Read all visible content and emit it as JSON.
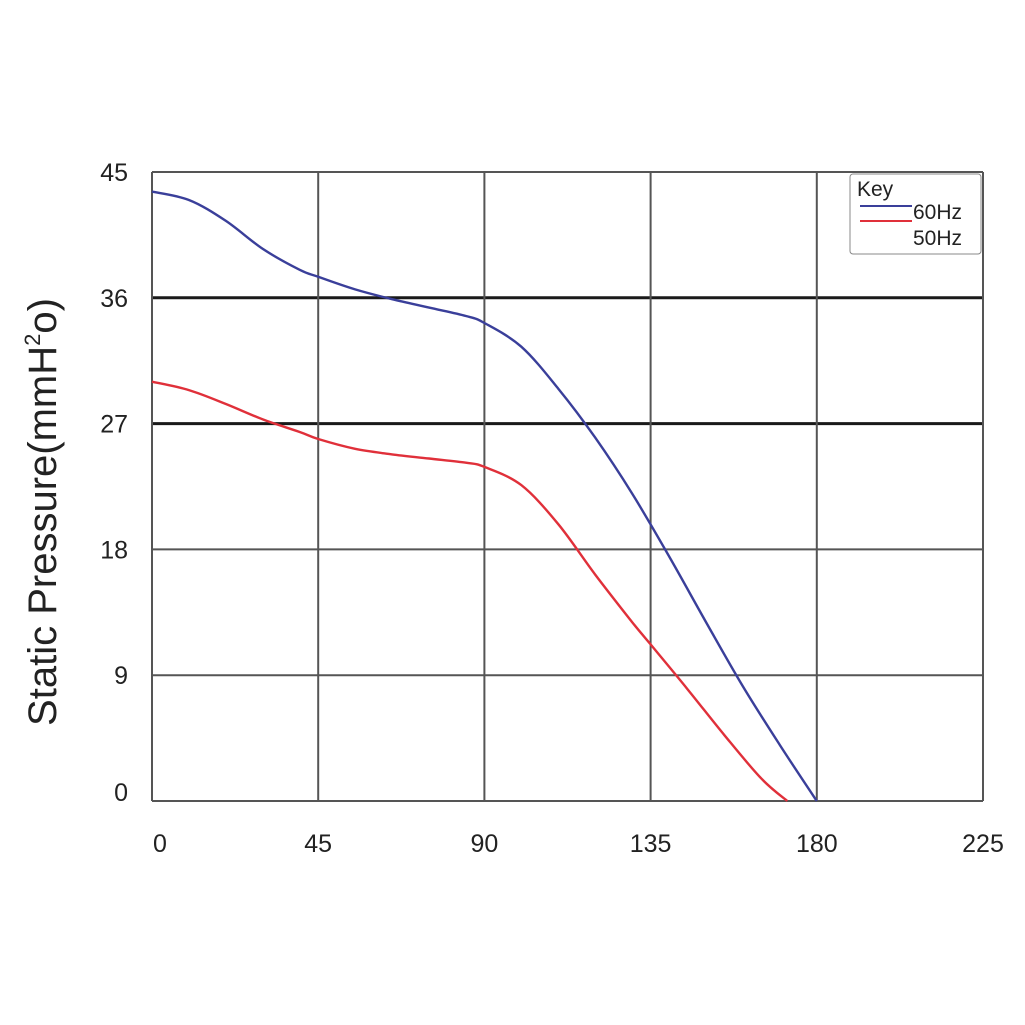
{
  "chart_data": {
    "type": "line",
    "title": "",
    "xlabel": "",
    "ylabel": "Static Pressure(mmH",
    "ylabel_sup": "2",
    "ylabel_end": "o)",
    "xlim": [
      0,
      225
    ],
    "ylim": [
      0,
      45
    ],
    "x_ticks": [
      0,
      45,
      90,
      135,
      180,
      225
    ],
    "y_ticks": [
      0,
      9,
      18,
      27,
      36,
      45
    ],
    "grid": true,
    "legend": {
      "title": "Key",
      "placement": "top-right"
    },
    "series": [
      {
        "name": "60Hz",
        "color": "#3a3f9a",
        "x": [
          0,
          10,
          20,
          30,
          40,
          45,
          55,
          65,
          75,
          85,
          90,
          100,
          110,
          120,
          130,
          140,
          150,
          160,
          170,
          180
        ],
        "y": [
          43.6,
          43.0,
          41.5,
          39.5,
          38.0,
          37.5,
          36.6,
          35.9,
          35.3,
          34.7,
          34.2,
          32.5,
          29.5,
          26.0,
          22.0,
          17.5,
          12.8,
          8.2,
          4.0,
          0
        ]
      },
      {
        "name": "50Hz",
        "color": "#e0303a",
        "x": [
          0,
          10,
          20,
          30,
          40,
          45,
          55,
          65,
          75,
          85,
          90,
          100,
          110,
          120,
          130,
          135,
          145,
          155,
          165,
          172
        ],
        "y": [
          30.0,
          29.4,
          28.4,
          27.3,
          26.4,
          25.9,
          25.2,
          24.8,
          24.5,
          24.2,
          23.9,
          22.6,
          19.8,
          16.2,
          12.8,
          11.2,
          8.0,
          4.7,
          1.6,
          0
        ]
      }
    ]
  }
}
